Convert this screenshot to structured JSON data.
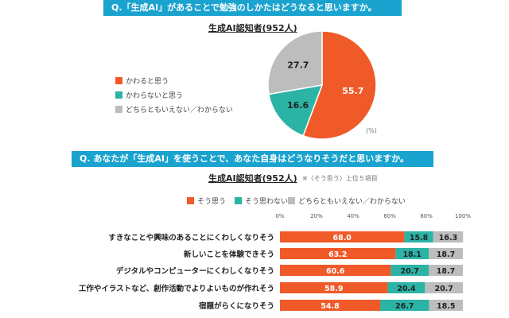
{
  "colors": {
    "agree": "#f05a28",
    "disagree": "#2bb3a6",
    "neither": "#bdbdbd",
    "banner": "#1aa3cf"
  },
  "chart_data": [
    {
      "type": "pie",
      "title": "Q.「生成AI」があることで勉強のしかたはどうなると思いますか。",
      "subtitle": "生成AI認知者(952人)",
      "unit": "(%)",
      "legend_position": "left",
      "slices": [
        {
          "name": "かわると思う",
          "value": 55.7
        },
        {
          "name": "かわらないと思う",
          "value": 16.6
        },
        {
          "name": "どちらともいえない／わからない",
          "value": 27.7
        }
      ]
    },
    {
      "type": "bar",
      "stacked": true,
      "orientation": "horizontal",
      "title": "Q. あなたが「生成AI」を使うことで、あなた自身はどうなりそうだと思いますか。",
      "subtitle": "生成AI認知者(952人)",
      "note": "※〈そう思う〉上位５項目",
      "legend_position": "top",
      "xlim": [
        0,
        100
      ],
      "ticks": [
        "0%",
        "20%",
        "40%",
        "60%",
        "80%",
        "100%"
      ],
      "categories": [
        "すきなことや興味のあることにくわしくなりそう",
        "新しいことを体験できそう",
        "デジタルやコンピューターにくわしくなりそう",
        "工作やイラストなど、創作活動でよりよいものが作れそう",
        "宿題がらくになりそう"
      ],
      "series": [
        {
          "name": "そう思う",
          "values": [
            68.0,
            63.2,
            60.6,
            58.9,
            54.8
          ]
        },
        {
          "name": "そう思わない",
          "values": [
            15.8,
            18.1,
            20.7,
            20.4,
            26.7
          ]
        },
        {
          "name": "どちらともいえない／わからない",
          "values": [
            16.3,
            18.7,
            18.7,
            20.7,
            18.5
          ]
        }
      ]
    }
  ]
}
